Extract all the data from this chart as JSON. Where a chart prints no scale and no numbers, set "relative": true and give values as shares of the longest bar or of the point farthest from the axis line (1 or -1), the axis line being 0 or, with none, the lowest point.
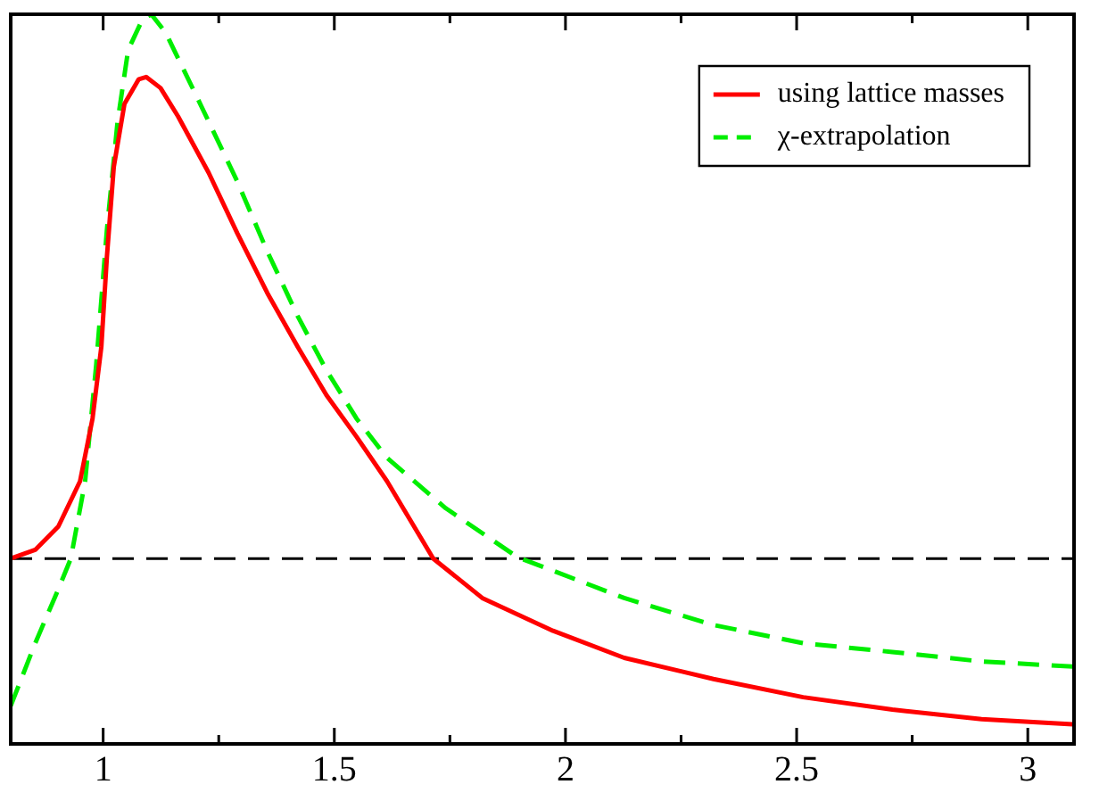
{
  "chart_data": {
    "type": "line",
    "relative": true,
    "xlim": [
      0.8,
      3.1
    ],
    "xticks": [
      1,
      {
        "value": 1.25,
        "label": null
      },
      1.5,
      {
        "value": 1.75,
        "label": null
      },
      2,
      {
        "value": 2.25,
        "label": null
      },
      2.5,
      {
        "value": 2.75,
        "label": null
      },
      3
    ],
    "grid": false,
    "legend": "top right",
    "marker": "none",
    "ref_lines": [
      {
        "axis": "y",
        "value": 0.254,
        "color": "#000000",
        "line_style": "dashed"
      }
    ],
    "series": [
      {
        "name": "using lattice masses",
        "color": "#ff0000",
        "line_style": "solid",
        "x": [
          0.8,
          0.853,
          0.903,
          0.95,
          0.977,
          0.996,
          1.008,
          1.023,
          1.046,
          1.077,
          1.093,
          1.124,
          1.162,
          1.228,
          1.29,
          1.355,
          1.421,
          1.483,
          1.548,
          1.614,
          1.714,
          1.82,
          1.973,
          2.127,
          2.32,
          2.514,
          2.707,
          2.9,
          3.097
        ],
        "values": [
          0.254,
          0.266,
          0.298,
          0.36,
          0.446,
          0.544,
          0.667,
          0.791,
          0.877,
          0.911,
          0.914,
          0.899,
          0.86,
          0.783,
          0.7,
          0.618,
          0.544,
          0.478,
          0.421,
          0.36,
          0.254,
          0.2,
          0.155,
          0.118,
          0.089,
          0.064,
          0.047,
          0.034,
          0.027
        ]
      },
      {
        "name": "χ-extrapolation",
        "color": "#00ee00",
        "line_style": "dashed",
        "x": [
          0.8,
          0.853,
          0.903,
          0.93,
          0.961,
          0.985,
          1.008,
          1.031,
          1.054,
          1.085,
          1.104,
          1.135,
          1.201,
          1.29,
          1.355,
          1.421,
          1.483,
          1.548,
          1.614,
          1.741,
          1.896,
          2.127,
          2.32,
          2.514,
          2.707,
          2.9,
          3.097
        ],
        "values": [
          0.052,
          0.138,
          0.212,
          0.254,
          0.36,
          0.52,
          0.704,
          0.852,
          0.951,
          0.993,
          1,
          0.975,
          0.889,
          0.771,
          0.675,
          0.586,
          0.512,
          0.446,
          0.392,
          0.323,
          0.256,
          0.2,
          0.163,
          0.138,
          0.126,
          0.113,
          0.106
        ]
      }
    ]
  }
}
